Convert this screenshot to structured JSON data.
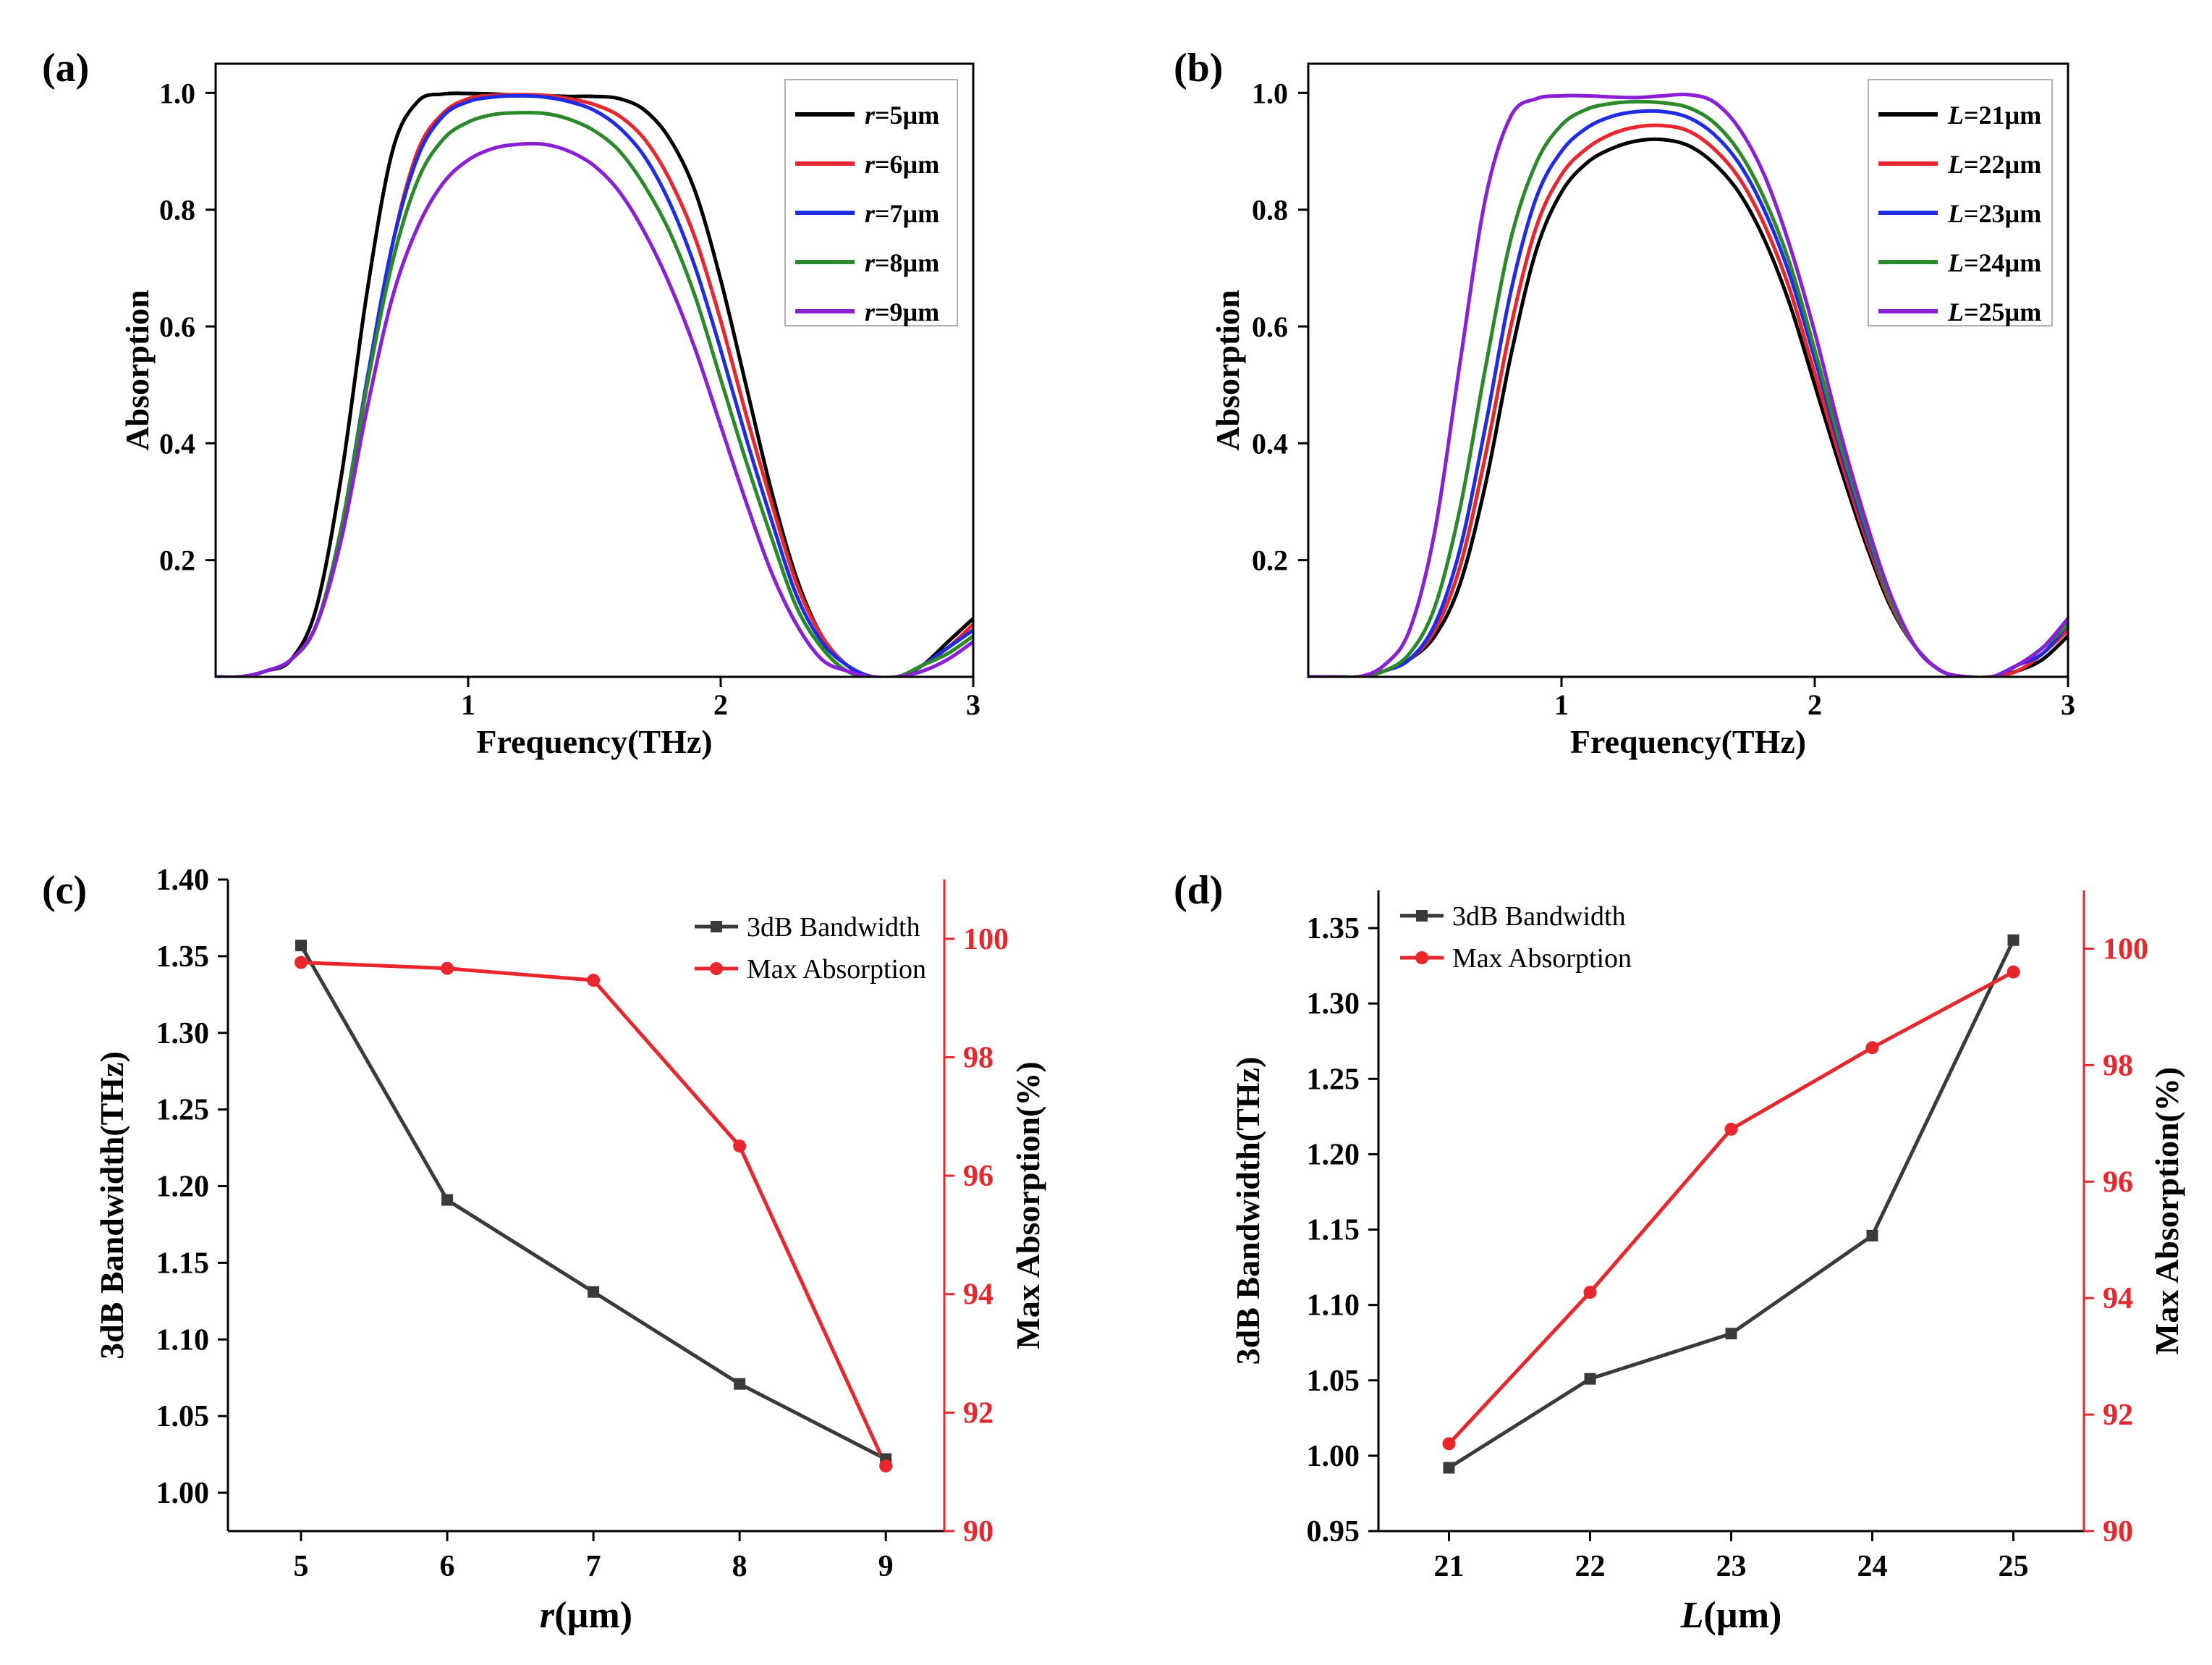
{
  "figure": {
    "panels": [
      "(a)",
      "(b)",
      "(c)",
      "(d)"
    ]
  },
  "chart_data": [
    {
      "id": "a",
      "type": "line",
      "panel_label": "(a)",
      "xlabel": "Frequency(THz)",
      "ylabel": "Absorption",
      "xlim": [
        0,
        3
      ],
      "ylim": [
        0,
        1.05
      ],
      "xticks": [
        "1",
        "2",
        "3"
      ],
      "yticks": [
        "0.2",
        "0.4",
        "0.6",
        "0.8",
        "1.0"
      ],
      "legend_position": "top-right",
      "series": [
        {
          "name": "r=5µm",
          "var": "r",
          "val": "=5µm",
          "color": "#000000",
          "x": [
            0,
            0.1,
            0.2,
            0.3,
            0.4,
            0.5,
            0.6,
            0.7,
            0.8,
            0.9,
            1.0,
            1.1,
            1.2,
            1.3,
            1.4,
            1.5,
            1.6,
            1.7,
            1.8,
            1.9,
            2.0,
            2.1,
            2.2,
            2.3,
            2.4,
            2.5,
            2.6,
            2.7,
            2.8,
            2.9,
            3.0
          ],
          "values": [
            0.0,
            0.0,
            0.01,
            0.03,
            0.12,
            0.35,
            0.66,
            0.9,
            0.985,
            0.998,
            0.999,
            0.998,
            0.996,
            0.995,
            0.994,
            0.994,
            0.99,
            0.97,
            0.92,
            0.83,
            0.68,
            0.5,
            0.32,
            0.17,
            0.07,
            0.02,
            0.0,
            0.0,
            0.02,
            0.06,
            0.1
          ]
        },
        {
          "name": "r=6µm",
          "var": "r",
          "val": "=6µm",
          "color": "#e8262b",
          "x": [
            0,
            0.1,
            0.2,
            0.3,
            0.4,
            0.5,
            0.6,
            0.7,
            0.8,
            0.9,
            1.0,
            1.1,
            1.2,
            1.3,
            1.4,
            1.5,
            1.6,
            1.7,
            1.8,
            1.9,
            2.0,
            2.1,
            2.2,
            2.3,
            2.4,
            2.5,
            2.6,
            2.7,
            2.8,
            2.9,
            3.0
          ],
          "values": [
            0.0,
            0.0,
            0.01,
            0.03,
            0.09,
            0.25,
            0.5,
            0.74,
            0.9,
            0.965,
            0.99,
            0.996,
            0.997,
            0.996,
            0.99,
            0.98,
            0.96,
            0.92,
            0.85,
            0.75,
            0.61,
            0.45,
            0.3,
            0.16,
            0.07,
            0.02,
            0.0,
            0.0,
            0.02,
            0.05,
            0.09
          ]
        },
        {
          "name": "r=7µm",
          "var": "r",
          "val": "=7µm",
          "color": "#1e2ce8",
          "x": [
            0,
            0.1,
            0.2,
            0.3,
            0.4,
            0.5,
            0.6,
            0.7,
            0.8,
            0.9,
            1.0,
            1.1,
            1.2,
            1.3,
            1.4,
            1.5,
            1.6,
            1.7,
            1.8,
            1.9,
            2.0,
            2.1,
            2.2,
            2.3,
            2.4,
            2.5,
            2.6,
            2.7,
            2.8,
            2.9,
            3.0
          ],
          "values": [
            0.0,
            0.0,
            0.01,
            0.03,
            0.09,
            0.26,
            0.51,
            0.74,
            0.89,
            0.96,
            0.985,
            0.993,
            0.995,
            0.993,
            0.985,
            0.97,
            0.94,
            0.89,
            0.81,
            0.7,
            0.56,
            0.41,
            0.27,
            0.14,
            0.06,
            0.02,
            0.0,
            0.0,
            0.02,
            0.05,
            0.08
          ]
        },
        {
          "name": "r=8µm",
          "var": "r",
          "val": "=8µm",
          "color": "#2a8a2a",
          "x": [
            0,
            0.1,
            0.2,
            0.3,
            0.4,
            0.5,
            0.6,
            0.7,
            0.8,
            0.9,
            1.0,
            1.1,
            1.2,
            1.3,
            1.4,
            1.5,
            1.6,
            1.7,
            1.8,
            1.9,
            2.0,
            2.1,
            2.2,
            2.3,
            2.4,
            2.5,
            2.6,
            2.7,
            2.8,
            2.9,
            3.0
          ],
          "values": [
            0.0,
            0.0,
            0.01,
            0.03,
            0.09,
            0.26,
            0.5,
            0.71,
            0.85,
            0.92,
            0.95,
            0.963,
            0.966,
            0.965,
            0.955,
            0.935,
            0.9,
            0.84,
            0.76,
            0.65,
            0.51,
            0.37,
            0.24,
            0.12,
            0.05,
            0.01,
            0.0,
            0.0,
            0.02,
            0.04,
            0.07
          ]
        },
        {
          "name": "r=9µm",
          "var": "r",
          "val": "=9µm",
          "color": "#8a1fd6",
          "x": [
            0,
            0.1,
            0.2,
            0.3,
            0.4,
            0.5,
            0.6,
            0.7,
            0.8,
            0.9,
            1.0,
            1.1,
            1.2,
            1.3,
            1.4,
            1.5,
            1.6,
            1.7,
            1.8,
            1.9,
            2.0,
            2.1,
            2.2,
            2.3,
            2.4,
            2.5,
            2.6,
            2.7,
            2.8,
            2.9,
            3.0
          ],
          "values": [
            0.0,
            0.0,
            0.01,
            0.03,
            0.09,
            0.24,
            0.46,
            0.65,
            0.77,
            0.845,
            0.885,
            0.905,
            0.912,
            0.912,
            0.9,
            0.875,
            0.83,
            0.76,
            0.67,
            0.56,
            0.43,
            0.3,
            0.18,
            0.09,
            0.03,
            0.01,
            0.0,
            0.0,
            0.01,
            0.03,
            0.06
          ]
        }
      ]
    },
    {
      "id": "b",
      "type": "line",
      "panel_label": "(b)",
      "xlabel": "Frequency(THz)",
      "ylabel": "Absorption",
      "xlim": [
        0,
        3
      ],
      "ylim": [
        0,
        1.05
      ],
      "xticks": [
        "1",
        "2",
        "3"
      ],
      "yticks": [
        "0.2",
        "0.4",
        "0.6",
        "0.8",
        "1.0"
      ],
      "legend_position": "top-right",
      "series": [
        {
          "name": "L=21µm",
          "var": "L",
          "val": "=21µm",
          "color": "#000000",
          "x": [
            0,
            0.1,
            0.2,
            0.3,
            0.4,
            0.5,
            0.6,
            0.7,
            0.8,
            0.9,
            1.0,
            1.1,
            1.2,
            1.3,
            1.4,
            1.5,
            1.6,
            1.7,
            1.8,
            1.9,
            2.0,
            2.1,
            2.2,
            2.3,
            2.4,
            2.5,
            2.6,
            2.7,
            2.8,
            2.9,
            3.0
          ],
          "values": [
            0.0,
            0.0,
            0.0,
            0.01,
            0.03,
            0.07,
            0.16,
            0.33,
            0.55,
            0.73,
            0.83,
            0.88,
            0.905,
            0.918,
            0.92,
            0.91,
            0.88,
            0.83,
            0.75,
            0.64,
            0.5,
            0.36,
            0.23,
            0.12,
            0.05,
            0.01,
            0.0,
            0.0,
            0.01,
            0.03,
            0.07
          ]
        },
        {
          "name": "L=22µm",
          "var": "L",
          "val": "=22µm",
          "color": "#e8262b",
          "x": [
            0,
            0.1,
            0.2,
            0.3,
            0.4,
            0.5,
            0.6,
            0.7,
            0.8,
            0.9,
            1.0,
            1.1,
            1.2,
            1.3,
            1.4,
            1.5,
            1.6,
            1.7,
            1.8,
            1.9,
            2.0,
            2.1,
            2.2,
            2.3,
            2.4,
            2.5,
            2.6,
            2.7,
            2.8,
            2.9,
            3.0
          ],
          "values": [
            0.0,
            0.0,
            0.0,
            0.01,
            0.03,
            0.08,
            0.19,
            0.38,
            0.6,
            0.77,
            0.86,
            0.905,
            0.93,
            0.942,
            0.944,
            0.935,
            0.905,
            0.855,
            0.775,
            0.665,
            0.52,
            0.375,
            0.24,
            0.125,
            0.05,
            0.01,
            0.0,
            0.0,
            0.01,
            0.04,
            0.08
          ]
        },
        {
          "name": "L=23µm",
          "var": "L",
          "val": "=23µm",
          "color": "#1e2ce8",
          "x": [
            0,
            0.1,
            0.2,
            0.3,
            0.4,
            0.5,
            0.6,
            0.7,
            0.8,
            0.9,
            1.0,
            1.1,
            1.2,
            1.3,
            1.4,
            1.5,
            1.6,
            1.7,
            1.8,
            1.9,
            2.0,
            2.1,
            2.2,
            2.3,
            2.4,
            2.5,
            2.6,
            2.7,
            2.8,
            2.9,
            3.0
          ],
          "values": [
            0.0,
            0.0,
            0.0,
            0.01,
            0.03,
            0.09,
            0.22,
            0.43,
            0.66,
            0.82,
            0.9,
            0.94,
            0.96,
            0.968,
            0.968,
            0.958,
            0.93,
            0.88,
            0.8,
            0.69,
            0.545,
            0.39,
            0.25,
            0.13,
            0.05,
            0.01,
            0.0,
            0.0,
            0.02,
            0.04,
            0.09
          ]
        },
        {
          "name": "L=24µm",
          "var": "L",
          "val": "=24µm",
          "color": "#2a8a2a",
          "x": [
            0,
            0.1,
            0.2,
            0.3,
            0.4,
            0.5,
            0.6,
            0.7,
            0.8,
            0.9,
            1.0,
            1.1,
            1.2,
            1.3,
            1.4,
            1.5,
            1.6,
            1.7,
            1.8,
            1.9,
            2.0,
            2.1,
            2.2,
            2.3,
            2.4,
            2.5,
            2.6,
            2.7,
            2.8,
            2.9,
            3.0
          ],
          "values": [
            0.0,
            0.0,
            0.0,
            0.01,
            0.04,
            0.12,
            0.29,
            0.53,
            0.75,
            0.88,
            0.945,
            0.972,
            0.982,
            0.985,
            0.983,
            0.975,
            0.95,
            0.9,
            0.82,
            0.71,
            0.56,
            0.4,
            0.26,
            0.13,
            0.05,
            0.01,
            0.0,
            0.0,
            0.02,
            0.05,
            0.09
          ]
        },
        {
          "name": "L=25µm",
          "var": "L",
          "val": "=25µm",
          "color": "#8a1fd6",
          "x": [
            0,
            0.1,
            0.2,
            0.3,
            0.4,
            0.5,
            0.6,
            0.7,
            0.8,
            0.9,
            1.0,
            1.1,
            1.2,
            1.3,
            1.4,
            1.5,
            1.6,
            1.7,
            1.8,
            1.9,
            2.0,
            2.1,
            2.2,
            2.3,
            2.4,
            2.5,
            2.6,
            2.7,
            2.8,
            2.9,
            3.0
          ],
          "values": [
            0.0,
            0.0,
            0.0,
            0.02,
            0.08,
            0.25,
            0.54,
            0.82,
            0.96,
            0.99,
            0.995,
            0.995,
            0.993,
            0.992,
            0.995,
            0.997,
            0.985,
            0.94,
            0.86,
            0.74,
            0.59,
            0.42,
            0.27,
            0.14,
            0.05,
            0.01,
            0.0,
            0.0,
            0.02,
            0.05,
            0.1
          ]
        }
      ]
    },
    {
      "id": "c",
      "type": "line",
      "panel_label": "(c)",
      "xlabel_var": "r",
      "xlabel_unit": "(µm)",
      "ylabel": "3dB Bandwidth(THz)",
      "ylabel_right": "Max Absorption(%)",
      "x": [
        5,
        6,
        7,
        8,
        9
      ],
      "xlim": [
        4.5,
        9.4
      ],
      "xticks": [
        "5",
        "6",
        "7",
        "8",
        "9"
      ],
      "ylim": [
        0.975,
        1.4
      ],
      "yticks": [
        "1.00",
        "1.05",
        "1.10",
        "1.15",
        "1.20",
        "1.25",
        "1.30",
        "1.35",
        "1.40"
      ],
      "ylim_right": [
        90,
        101
      ],
      "yticks_right": [
        "90",
        "92",
        "94",
        "96",
        "98",
        "100"
      ],
      "legend_position": "top-right",
      "series": [
        {
          "name": "3dB Bandwidth",
          "axis": "left",
          "marker": "square",
          "color": "#3a3a3a",
          "values": [
            1.357,
            1.191,
            1.131,
            1.071,
            1.022
          ]
        },
        {
          "name": "Max Absorption",
          "axis": "right",
          "marker": "circle",
          "color": "#e8262b",
          "values": [
            99.6,
            99.5,
            99.3,
            96.5,
            91.1
          ]
        }
      ]
    },
    {
      "id": "d",
      "type": "line",
      "panel_label": "(d)",
      "xlabel_var": "L",
      "xlabel_unit": "(µm)",
      "ylabel": "3dB Bandwidth(THz)",
      "ylabel_right": "Max Absorption(%)",
      "x": [
        21,
        22,
        23,
        24,
        25
      ],
      "xlim": [
        20.5,
        25.5
      ],
      "xticks": [
        "21",
        "22",
        "23",
        "24",
        "25"
      ],
      "ylim": [
        0.95,
        1.375
      ],
      "yticks": [
        "0.95",
        "1.00",
        "1.05",
        "1.10",
        "1.15",
        "1.20",
        "1.25",
        "1.30",
        "1.35"
      ],
      "ylim_right": [
        90,
        101
      ],
      "yticks_right": [
        "90",
        "92",
        "94",
        "96",
        "98",
        "100"
      ],
      "legend_position": "top-left",
      "series": [
        {
          "name": "3dB Bandwidth",
          "axis": "left",
          "marker": "square",
          "color": "#3a3a3a",
          "values": [
            0.992,
            1.051,
            1.081,
            1.146,
            1.342
          ]
        },
        {
          "name": "Max Absorption",
          "axis": "right",
          "marker": "circle",
          "color": "#e8262b",
          "values": [
            91.5,
            94.1,
            96.9,
            98.3,
            99.6
          ]
        }
      ]
    }
  ]
}
